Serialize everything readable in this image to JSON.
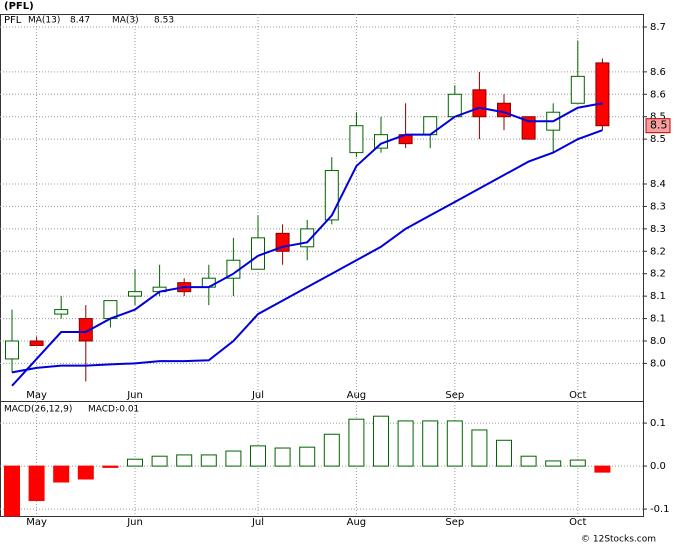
{
  "chart_data": [
    {
      "type": "candlestick",
      "title": "(PFL)",
      "symbol": "PFL",
      "categories": [
        null,
        "May",
        null,
        null,
        null,
        "Jun",
        null,
        null,
        null,
        null,
        "Jul",
        null,
        null,
        null,
        "Aug",
        null,
        null,
        null,
        "Sep",
        null,
        null,
        null,
        null,
        "Oct",
        null
      ],
      "open": [
        7.96,
        8.0,
        8.06,
        8.05,
        8.05,
        8.1,
        8.11,
        8.13,
        8.12,
        8.14,
        8.16,
        8.24,
        8.21,
        8.27,
        8.42,
        8.43,
        8.46,
        8.46,
        8.5,
        8.56,
        8.53,
        8.5,
        8.47,
        8.53,
        8.62
      ],
      "high": [
        8.07,
        8.01,
        8.1,
        8.08,
        8.09,
        8.16,
        8.17,
        8.14,
        8.17,
        8.23,
        8.28,
        8.26,
        8.27,
        8.41,
        8.51,
        8.5,
        8.53,
        8.5,
        8.57,
        8.6,
        8.55,
        8.5,
        8.53,
        8.67,
        8.63
      ],
      "low": [
        7.93,
        7.99,
        8.05,
        7.91,
        8.03,
        8.08,
        8.1,
        8.1,
        8.08,
        8.1,
        8.16,
        8.17,
        8.18,
        8.26,
        8.41,
        8.42,
        8.43,
        8.43,
        8.5,
        8.45,
        8.47,
        8.45,
        8.42,
        8.53,
        8.47
      ],
      "close": [
        8.0,
        7.99,
        8.07,
        8.0,
        8.09,
        8.11,
        8.12,
        8.11,
        8.14,
        8.18,
        8.23,
        8.2,
        8.25,
        8.38,
        8.48,
        8.46,
        8.44,
        8.5,
        8.55,
        8.5,
        8.5,
        8.45,
        8.51,
        8.59,
        8.48
      ],
      "last_label": "8.5",
      "colors": {
        "up_fill": "#ffffff",
        "up_stroke": "#006400",
        "down_fill": "#ff0000",
        "down_stroke": "#8b0000"
      },
      "series": [
        {
          "name": "MA(13)",
          "color": "#0000dd",
          "values": [
            7.93,
            7.94,
            7.945,
            7.945,
            7.948,
            7.95,
            7.955,
            7.955,
            7.957,
            8.0,
            8.06,
            8.09,
            8.12,
            8.15,
            8.18,
            8.21,
            8.25,
            8.28,
            8.31,
            8.34,
            8.37,
            8.4,
            8.42,
            8.45,
            8.47
          ]
        },
        {
          "name": "MA(3)",
          "color": "#0000dd",
          "values": [
            7.9,
            7.96,
            8.02,
            8.02,
            8.05,
            8.07,
            8.11,
            8.12,
            8.12,
            8.15,
            8.19,
            8.21,
            8.22,
            8.28,
            8.39,
            8.44,
            8.46,
            8.46,
            8.5,
            8.52,
            8.51,
            8.49,
            8.49,
            8.52,
            8.53
          ]
        }
      ],
      "ylim": [
        7.864,
        8.729
      ],
      "yticks": [
        8.7,
        {
          "value": 8.6,
          "label": "8.6"
        },
        {
          "value": 8.55,
          "label": "8.6"
        },
        8.5,
        {
          "value": 8.45,
          "label": "8.5"
        },
        {
          "value": 8.35,
          "label": "8.4"
        },
        8.3,
        {
          "value": 8.25,
          "label": "8.3"
        },
        8.2,
        {
          "value": 8.15,
          "label": "8.2"
        },
        8.1,
        {
          "value": 8.05,
          "label": "8.1"
        },
        {
          "value": 8.0,
          "label": "8.0"
        },
        {
          "value": 7.95,
          "label": "8.0"
        }
      ],
      "grid": true
    },
    {
      "type": "bar",
      "title": "MACD(26,12,9)",
      "current_name": "MACD:",
      "current": -0.01,
      "categories": [
        null,
        "May",
        null,
        null,
        null,
        "Jun",
        null,
        null,
        null,
        null,
        "Jul",
        null,
        null,
        null,
        "Aug",
        null,
        null,
        null,
        "Sep",
        null,
        null,
        null,
        null,
        "Oct",
        null
      ],
      "values": [
        -0.116,
        -0.08,
        -0.037,
        -0.03,
        -0.003,
        0.016,
        0.023,
        0.026,
        0.026,
        0.035,
        0.047,
        0.042,
        0.044,
        0.074,
        0.109,
        0.116,
        0.105,
        0.105,
        0.105,
        0.084,
        0.06,
        0.023,
        0.012,
        0.014,
        -0.014
      ],
      "colors": {
        "up": "#006400",
        "down": "#ff0000"
      },
      "ylim": [
        -0.116,
        0.149
      ],
      "yticks": [
        0.1,
        {
          "value": 0,
          "label": "0.0"
        },
        -0.1
      ],
      "grid": true,
      "watermark": "© 12Stocks.com"
    }
  ]
}
